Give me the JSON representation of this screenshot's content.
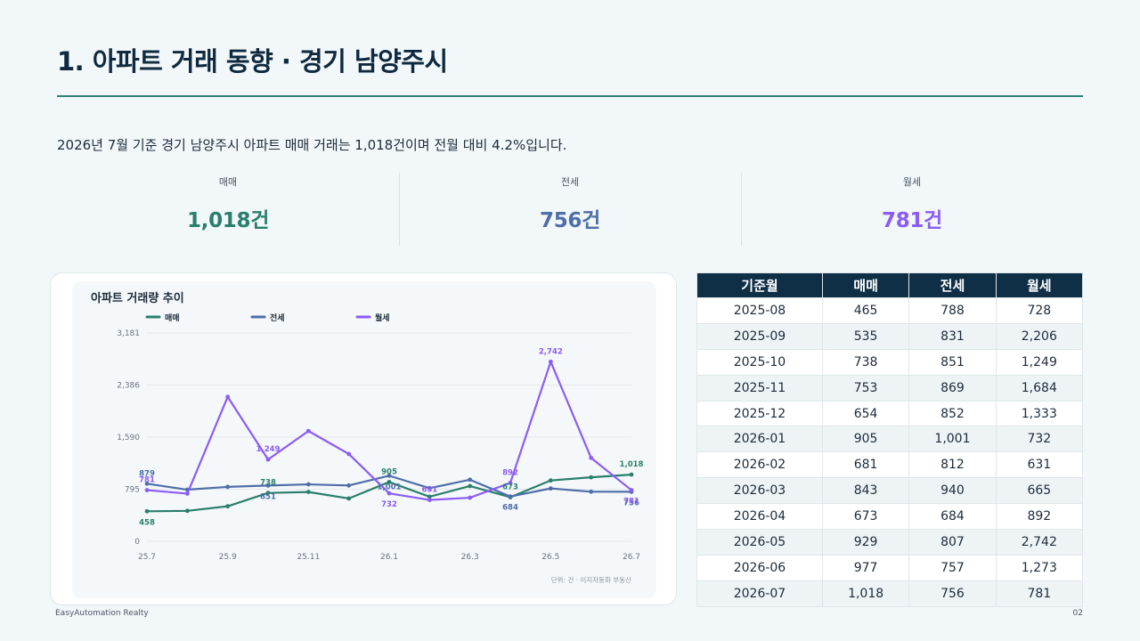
{
  "title": "1. 아파트 거래 동향 · 경기 남양주시",
  "summary": "2026년 7월 기준 경기 남양주시 아파트 매매 거래는 1,018건이며 전월 대비 4.2%입니다.",
  "kpis": [
    {
      "label": "매매",
      "value": "1,018건",
      "color": "#2a7f6c"
    },
    {
      "label": "전세",
      "value": "756건",
      "color": "#4e6ea8"
    },
    {
      "label": "월세",
      "value": "781건",
      "color": "#8b5cf6"
    }
  ],
  "chart_data": {
    "type": "line",
    "title": "아파트 거래량 추이",
    "x": [
      "25.7",
      "25.8",
      "25.9",
      "25.10",
      "25.11",
      "25.12",
      "26.1",
      "26.2",
      "26.3",
      "26.4",
      "26.5",
      "26.6",
      "26.7"
    ],
    "x_tick_labels": [
      "25.7",
      "25.9",
      "25.11",
      "26.1",
      "26.3",
      "26.5",
      "26.7"
    ],
    "y_ticks": [
      "0",
      "795",
      "1,590",
      "2,386",
      "3,181"
    ],
    "ylim": [
      0,
      3181
    ],
    "grid": true,
    "legend_position": "top-left",
    "series": [
      {
        "name": "매매",
        "color": "#2a7f6c",
        "values": [
          458,
          465,
          535,
          738,
          753,
          654,
          905,
          681,
          843,
          673,
          929,
          977,
          1018
        ]
      },
      {
        "name": "전세",
        "color": "#4e6ea8",
        "values": [
          879,
          788,
          831,
          851,
          869,
          852,
          1001,
          812,
          940,
          684,
          807,
          757,
          756
        ]
      },
      {
        "name": "월세",
        "color": "#8b5cf6",
        "values": [
          781,
          728,
          2206,
          1249,
          1684,
          1333,
          732,
          631,
          665,
          892,
          2742,
          1273,
          781
        ]
      }
    ],
    "data_labels": [
      {
        "series": 0,
        "index": 0,
        "text": "458",
        "pos": "below"
      },
      {
        "series": 0,
        "index": 3,
        "text": "738",
        "pos": "above"
      },
      {
        "series": 0,
        "index": 6,
        "text": "905",
        "pos": "above"
      },
      {
        "series": 0,
        "index": 9,
        "text": "673",
        "pos": "above"
      },
      {
        "series": 0,
        "index": 12,
        "text": "1,018",
        "pos": "above"
      },
      {
        "series": 1,
        "index": 0,
        "text": "879",
        "pos": "above"
      },
      {
        "series": 1,
        "index": 3,
        "text": "851",
        "pos": "below"
      },
      {
        "series": 1,
        "index": 6,
        "text": "1,001",
        "pos": "below"
      },
      {
        "series": 1,
        "index": 9,
        "text": "684",
        "pos": "below"
      },
      {
        "series": 1,
        "index": 12,
        "text": "756",
        "pos": "below"
      },
      {
        "series": 2,
        "index": 0,
        "text": "781",
        "pos": "above"
      },
      {
        "series": 2,
        "index": 3,
        "text": "1,249",
        "pos": "above"
      },
      {
        "series": 2,
        "index": 6,
        "text": "732",
        "pos": "below"
      },
      {
        "series": 2,
        "index": 7,
        "text": "631",
        "pos": "above"
      },
      {
        "series": 2,
        "index": 9,
        "text": "892",
        "pos": "above"
      },
      {
        "series": 2,
        "index": 10,
        "text": "2,742",
        "pos": "above"
      },
      {
        "series": 2,
        "index": 12,
        "text": "781",
        "pos": "below"
      }
    ],
    "note": "단위: 건 · 이지자동화 부동산"
  },
  "table": {
    "headers": [
      "기준월",
      "매매",
      "전세",
      "월세"
    ],
    "rows": [
      [
        "2025-08",
        "465",
        "788",
        "728"
      ],
      [
        "2025-09",
        "535",
        "831",
        "2,206"
      ],
      [
        "2025-10",
        "738",
        "851",
        "1,249"
      ],
      [
        "2025-11",
        "753",
        "869",
        "1,684"
      ],
      [
        "2025-12",
        "654",
        "852",
        "1,333"
      ],
      [
        "2026-01",
        "905",
        "1,001",
        "732"
      ],
      [
        "2026-02",
        "681",
        "812",
        "631"
      ],
      [
        "2026-03",
        "843",
        "940",
        "665"
      ],
      [
        "2026-04",
        "673",
        "684",
        "892"
      ],
      [
        "2026-05",
        "929",
        "807",
        "2,742"
      ],
      [
        "2026-06",
        "977",
        "757",
        "1,273"
      ],
      [
        "2026-07",
        "1,018",
        "756",
        "781"
      ]
    ]
  },
  "footer": {
    "left": "EasyAutomation Realty",
    "right": "02"
  }
}
